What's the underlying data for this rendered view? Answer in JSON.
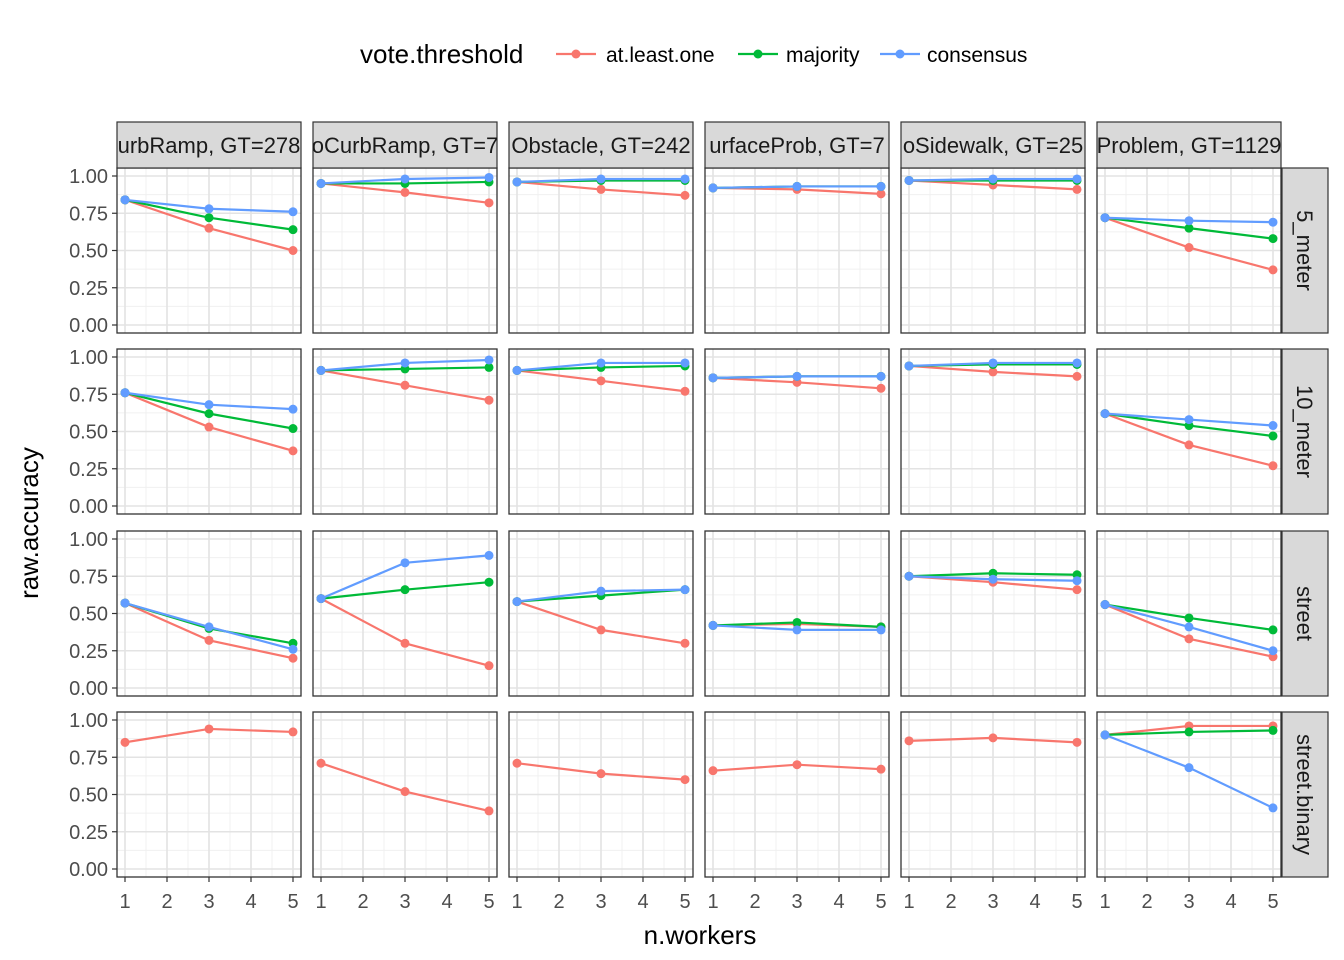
{
  "chart_data": {
    "type": "line",
    "xlabel": "n.workers",
    "ylabel": "raw.accuracy",
    "x": [
      1,
      3,
      5
    ],
    "x_ticks": [
      "1",
      "2",
      "3",
      "4",
      "5"
    ],
    "x_range": [
      1,
      5
    ],
    "y_ticks": [
      "0.00",
      "0.25",
      "0.50",
      "0.75",
      "1.00"
    ],
    "y_range": [
      0,
      1
    ],
    "grid": true,
    "legend": {
      "title": "vote.threshold",
      "position": "top",
      "entries": [
        {
          "name": "at.least.one",
          "color": "#F8766D"
        },
        {
          "name": "majority",
          "color": "#00BA38"
        },
        {
          "name": "consensus",
          "color": "#619CFF"
        }
      ]
    },
    "columns": [
      "urbRamp, GT=278",
      "oCurbRamp, GT=7",
      "Obstacle, GT=242",
      "urfaceProb, GT=7",
      "oSidewalk, GT=25",
      "Problem, GT=1129"
    ],
    "rows": [
      "5_meter",
      "10_meter",
      "street",
      "street.binary"
    ],
    "panels": [
      [
        {
          "at.least.one": [
            0.84,
            0.65,
            0.5
          ],
          "majority": [
            0.84,
            0.72,
            0.64
          ],
          "consensus": [
            0.84,
            0.78,
            0.76
          ]
        },
        {
          "at.least.one": [
            0.95,
            0.89,
            0.82
          ],
          "majority": [
            0.95,
            0.95,
            0.96
          ],
          "consensus": [
            0.95,
            0.98,
            0.99
          ]
        },
        {
          "at.least.one": [
            0.96,
            0.91,
            0.87
          ],
          "majority": [
            0.96,
            0.97,
            0.97
          ],
          "consensus": [
            0.96,
            0.98,
            0.98
          ]
        },
        {
          "at.least.one": [
            0.92,
            0.91,
            0.88
          ],
          "majority": [
            0.92,
            0.93,
            0.93
          ],
          "consensus": [
            0.92,
            0.93,
            0.93
          ]
        },
        {
          "at.least.one": [
            0.97,
            0.94,
            0.91
          ],
          "majority": [
            0.97,
            0.97,
            0.97
          ],
          "consensus": [
            0.97,
            0.98,
            0.98
          ]
        },
        {
          "at.least.one": [
            0.72,
            0.52,
            0.37
          ],
          "majority": [
            0.72,
            0.65,
            0.58
          ],
          "consensus": [
            0.72,
            0.7,
            0.69
          ]
        }
      ],
      [
        {
          "at.least.one": [
            0.76,
            0.53,
            0.37
          ],
          "majority": [
            0.76,
            0.62,
            0.52
          ],
          "consensus": [
            0.76,
            0.68,
            0.65
          ]
        },
        {
          "at.least.one": [
            0.91,
            0.81,
            0.71
          ],
          "majority": [
            0.91,
            0.92,
            0.93
          ],
          "consensus": [
            0.91,
            0.96,
            0.98
          ]
        },
        {
          "at.least.one": [
            0.91,
            0.84,
            0.77
          ],
          "majority": [
            0.91,
            0.93,
            0.94
          ],
          "consensus": [
            0.91,
            0.96,
            0.96
          ]
        },
        {
          "at.least.one": [
            0.86,
            0.83,
            0.79
          ],
          "majority": [
            0.86,
            0.87,
            0.87
          ],
          "consensus": [
            0.86,
            0.87,
            0.87
          ]
        },
        {
          "at.least.one": [
            0.94,
            0.9,
            0.87
          ],
          "majority": [
            0.94,
            0.95,
            0.95
          ],
          "consensus": [
            0.94,
            0.96,
            0.96
          ]
        },
        {
          "at.least.one": [
            0.62,
            0.41,
            0.27
          ],
          "majority": [
            0.62,
            0.54,
            0.47
          ],
          "consensus": [
            0.62,
            0.58,
            0.54
          ]
        }
      ],
      [
        {
          "at.least.one": [
            0.57,
            0.32,
            0.2
          ],
          "majority": [
            0.57,
            0.4,
            0.3
          ],
          "consensus": [
            0.57,
            0.41,
            0.26
          ]
        },
        {
          "at.least.one": [
            0.6,
            0.3,
            0.15
          ],
          "majority": [
            0.6,
            0.66,
            0.71
          ],
          "consensus": [
            0.6,
            0.84,
            0.89
          ]
        },
        {
          "at.least.one": [
            0.58,
            0.39,
            0.3
          ],
          "majority": [
            0.58,
            0.62,
            0.66
          ],
          "consensus": [
            0.58,
            0.65,
            0.66
          ]
        },
        {
          "at.least.one": [
            0.42,
            0.43,
            0.41
          ],
          "majority": [
            0.42,
            0.44,
            0.41
          ],
          "consensus": [
            0.42,
            0.39,
            0.39
          ]
        },
        {
          "at.least.one": [
            0.75,
            0.71,
            0.66
          ],
          "majority": [
            0.75,
            0.77,
            0.76
          ],
          "consensus": [
            0.75,
            0.73,
            0.72
          ]
        },
        {
          "at.least.one": [
            0.56,
            0.33,
            0.21
          ],
          "majority": [
            0.56,
            0.47,
            0.39
          ],
          "consensus": [
            0.56,
            0.41,
            0.25
          ]
        }
      ],
      [
        {
          "at.least.one": [
            0.85,
            0.94,
            0.92
          ]
        },
        {
          "at.least.one": [
            0.71,
            0.52,
            0.39
          ]
        },
        {
          "at.least.one": [
            0.71,
            0.64,
            0.6
          ]
        },
        {
          "at.least.one": [
            0.66,
            0.7,
            0.67
          ]
        },
        {
          "at.least.one": [
            0.86,
            0.88,
            0.85
          ]
        },
        {
          "at.least.one": [
            0.9,
            0.96,
            0.96
          ],
          "majority": [
            0.9,
            0.92,
            0.93
          ],
          "consensus": [
            0.9,
            0.68,
            0.41
          ]
        }
      ]
    ]
  }
}
